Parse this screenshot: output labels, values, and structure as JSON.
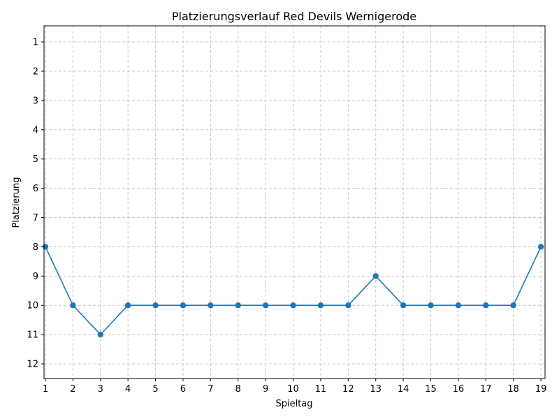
{
  "chart_data": {
    "type": "line",
    "title": "Platzierungsverlauf Red Devils Wernigerode",
    "xlabel": "Spieltag",
    "ylabel": "Platzierung",
    "x": [
      1,
      2,
      3,
      4,
      5,
      6,
      7,
      8,
      9,
      10,
      11,
      12,
      13,
      14,
      15,
      16,
      17,
      18,
      19
    ],
    "series": [
      {
        "values": [
          8,
          10,
          11,
          10,
          10,
          10,
          10,
          10,
          10,
          10,
          10,
          10,
          9,
          10,
          10,
          10,
          10,
          10,
          8
        ],
        "color": "#1f77b4",
        "marker": "circle"
      }
    ],
    "xlim": [
      0.95,
      19.15
    ],
    "ylim": [
      12.5,
      0.45
    ],
    "y_inverted": true,
    "xticks": [
      1,
      2,
      3,
      4,
      5,
      6,
      7,
      8,
      9,
      10,
      11,
      12,
      13,
      14,
      15,
      16,
      17,
      18,
      19
    ],
    "yticks": [
      1,
      2,
      3,
      4,
      5,
      6,
      7,
      8,
      9,
      10,
      11,
      12
    ],
    "grid": true,
    "grid_style": "dashed",
    "legend": "none"
  }
}
